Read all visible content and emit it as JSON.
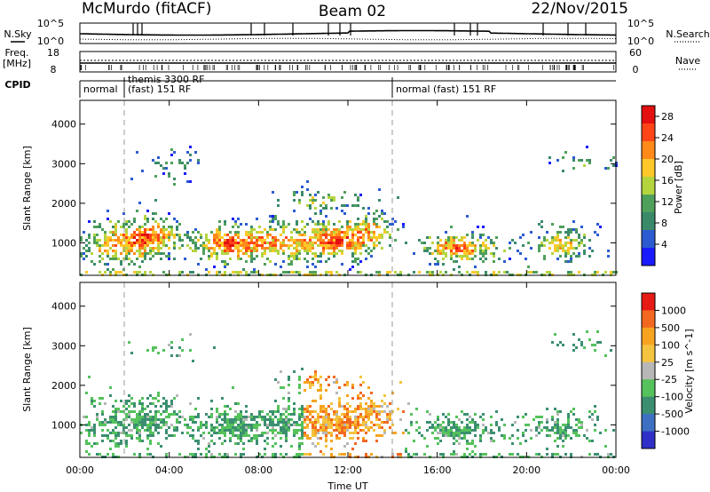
{
  "header": {
    "station": "McMurdo (fitACF)",
    "beam": "Beam 02",
    "date": "22/Nov/2015"
  },
  "aux_labels": {
    "nsky": "N.Sky",
    "freq_line1": "Freq.",
    "freq_line2": "[MHz]",
    "cpid": "CPID",
    "nsearch": "N.Search",
    "nave": "Nave"
  },
  "aux_ticks": {
    "noise_top_left": "10^5",
    "noise_bottom_left": "10^0",
    "noise_top_right": "10^5",
    "noise_bottom_right": "10^0",
    "freq_top": "18",
    "freq_bottom": "8",
    "nave_top": "60",
    "nave_bottom": "0"
  },
  "cpid_segments": [
    {
      "start_hour": 0.0,
      "label": "normal",
      "label2": ""
    },
    {
      "start_hour": 2.0,
      "label": "themis 3300 RF",
      "label2": "(fast) 151 RF"
    },
    {
      "start_hour": 14.0,
      "label": "normal (fast) 151 RF",
      "label2": ""
    }
  ],
  "colors": {
    "power_scale": [
      "#1a1aff",
      "#2c5bd1",
      "#3a8a6a",
      "#4fa05a",
      "#b5d53f",
      "#ffc82a",
      "#ff8a1a",
      "#ff4418",
      "#e40f10"
    ],
    "velocity_scale": [
      "#3030c8",
      "#3d6fc2",
      "#3b8f70",
      "#55c25c",
      "#b7b7b7",
      "#f4c340",
      "#f7a320",
      "#f36820",
      "#e81a16"
    ]
  },
  "chart_data": [
    {
      "type": "heatmap",
      "name_hint": "power",
      "xlabel": "",
      "ylabel": "Slant Range [km]",
      "x_ticks": [
        "00:00",
        "04:00",
        "08:00",
        "12:00",
        "16:00",
        "20:00",
        "00:00"
      ],
      "xlim_hours": [
        0,
        24
      ],
      "y_ticks": [
        "1000",
        "2000",
        "3000",
        "4000"
      ],
      "ylim_km": [
        180,
        4600
      ],
      "colorbar_label": "Power [dB]",
      "colorbar_ticks": [
        "4",
        "8",
        "12",
        "16",
        "20",
        "24",
        "28"
      ],
      "colorbar_range": [
        0,
        30
      ],
      "grid": false
    },
    {
      "type": "heatmap",
      "name_hint": "velocity",
      "xlabel": "Time UT",
      "ylabel": "Slant Range [km]",
      "x_ticks": [
        "00:00",
        "04:00",
        "08:00",
        "12:00",
        "16:00",
        "20:00",
        "00:00"
      ],
      "xlim_hours": [
        0,
        24
      ],
      "y_ticks": [
        "1000",
        "2000",
        "3000",
        "4000"
      ],
      "ylim_km": [
        180,
        4600
      ],
      "colorbar_label": "Velocity [m s^-1]",
      "colorbar_ticks": [
        "1000",
        "500",
        "100",
        "25",
        "-25",
        "-100",
        "-500",
        "-1000"
      ],
      "grid": false
    }
  ]
}
